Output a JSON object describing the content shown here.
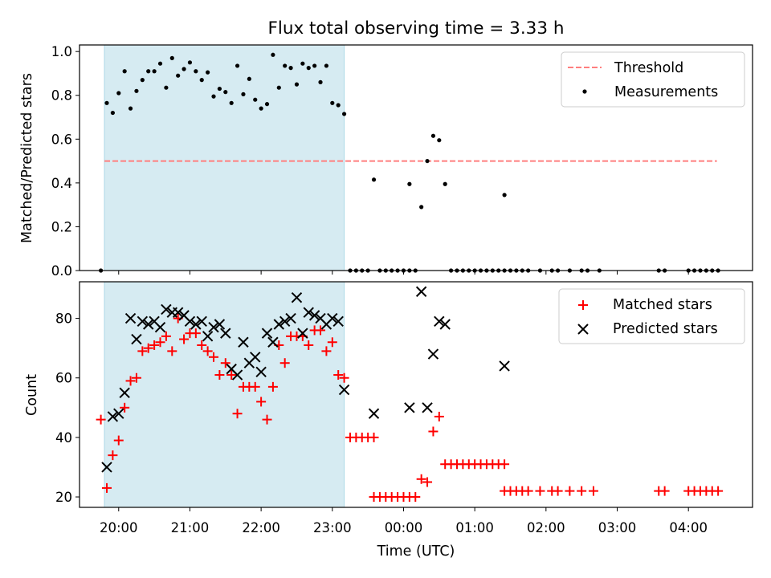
{
  "title": "Flux total observing time = 3.33 h",
  "xlabel": "Time (UTC)",
  "x_tick_labels": [
    "20:00",
    "21:00",
    "22:00",
    "23:00",
    "00:00",
    "01:00",
    "02:00",
    "03:00",
    "04:00"
  ],
  "shaded_interval": {
    "start": "19:48",
    "end": "23:10",
    "color": "#add8e6"
  },
  "chart_data": [
    {
      "type": "scatter",
      "ylabel": "Matched/Predicted stars",
      "xlim": [
        "19:27",
        "04:54"
      ],
      "ylim": [
        0,
        1.03
      ],
      "y_ticks": [
        "0.0",
        "0.2",
        "0.4",
        "0.6",
        "0.8",
        "1.0"
      ],
      "legend_position": "top-right",
      "threshold": {
        "name": "Threshold",
        "value": 0.5,
        "x_range": [
          "19:48",
          "04:24"
        ],
        "color": "#ff7f7f",
        "style": "dashed"
      },
      "series": [
        {
          "name": "Measurements",
          "color": "#000000",
          "marker": "dot",
          "points": [
            [
              "19:45",
              0.0
            ],
            [
              "19:50",
              0.765
            ],
            [
              "19:55",
              0.72
            ],
            [
              "20:00",
              0.81
            ],
            [
              "20:05",
              0.91
            ],
            [
              "20:10",
              0.74
            ],
            [
              "20:15",
              0.82
            ],
            [
              "20:20",
              0.87
            ],
            [
              "20:25",
              0.91
            ],
            [
              "20:30",
              0.91
            ],
            [
              "20:35",
              0.945
            ],
            [
              "20:40",
              0.835
            ],
            [
              "20:45",
              0.97
            ],
            [
              "20:50",
              0.89
            ],
            [
              "20:55",
              0.92
            ],
            [
              "21:00",
              0.95
            ],
            [
              "21:05",
              0.91
            ],
            [
              "21:10",
              0.87
            ],
            [
              "21:15",
              0.905
            ],
            [
              "21:20",
              0.795
            ],
            [
              "21:25",
              0.83
            ],
            [
              "21:30",
              0.815
            ],
            [
              "21:35",
              0.765
            ],
            [
              "21:40",
              0.935
            ],
            [
              "21:45",
              0.805
            ],
            [
              "21:50",
              0.875
            ],
            [
              "21:55",
              0.78
            ],
            [
              "22:00",
              0.74
            ],
            [
              "22:05",
              0.76
            ],
            [
              "22:10",
              0.985
            ],
            [
              "22:15",
              0.835
            ],
            [
              "22:20",
              0.935
            ],
            [
              "22:25",
              0.925
            ],
            [
              "22:30",
              0.85
            ],
            [
              "22:35",
              0.945
            ],
            [
              "22:40",
              0.925
            ],
            [
              "22:45",
              0.935
            ],
            [
              "22:50",
              0.86
            ],
            [
              "22:55",
              0.935
            ],
            [
              "23:00",
              0.765
            ],
            [
              "23:05",
              0.755
            ],
            [
              "23:10",
              0.715
            ],
            [
              "23:15",
              0.0
            ],
            [
              "23:20",
              0.0
            ],
            [
              "23:25",
              0.0
            ],
            [
              "23:30",
              0.0
            ],
            [
              "23:35",
              0.415
            ],
            [
              "23:40",
              0.0
            ],
            [
              "23:45",
              0.0
            ],
            [
              "23:50",
              0.0
            ],
            [
              "23:55",
              0.0
            ],
            [
              "00:00",
              0.0
            ],
            [
              "00:05",
              0.0
            ],
            [
              "00:10",
              0.0
            ],
            [
              "00:05",
              0.395
            ],
            [
              "00:15",
              0.29
            ],
            [
              "00:20",
              0.5
            ],
            [
              "00:25",
              0.615
            ],
            [
              "00:30",
              0.595
            ],
            [
              "00:35",
              0.395
            ],
            [
              "00:40",
              0.0
            ],
            [
              "00:45",
              0.0
            ],
            [
              "00:50",
              0.0
            ],
            [
              "00:55",
              0.0
            ],
            [
              "01:00",
              0.0
            ],
            [
              "01:05",
              0.0
            ],
            [
              "01:10",
              0.0
            ],
            [
              "01:15",
              0.0
            ],
            [
              "01:20",
              0.0
            ],
            [
              "01:25",
              0.0
            ],
            [
              "01:25",
              0.345
            ],
            [
              "01:30",
              0.0
            ],
            [
              "01:35",
              0.0
            ],
            [
              "01:40",
              0.0
            ],
            [
              "01:45",
              0.0
            ],
            [
              "01:55",
              0.0
            ],
            [
              "02:05",
              0.0
            ],
            [
              "02:10",
              0.0
            ],
            [
              "02:20",
              0.0
            ],
            [
              "02:30",
              0.0
            ],
            [
              "02:35",
              0.0
            ],
            [
              "02:45",
              0.0
            ],
            [
              "03:35",
              0.0
            ],
            [
              "03:40",
              0.0
            ],
            [
              "04:00",
              0.0
            ],
            [
              "04:05",
              0.0
            ],
            [
              "04:10",
              0.0
            ],
            [
              "04:15",
              0.0
            ],
            [
              "04:20",
              0.0
            ],
            [
              "04:25",
              0.0
            ]
          ]
        }
      ]
    },
    {
      "type": "scatter",
      "ylabel": "Count",
      "xlim": [
        "19:27",
        "04:54"
      ],
      "ylim": [
        16.5,
        92.3
      ],
      "y_ticks": [
        "20",
        "40",
        "60",
        "80"
      ],
      "legend_position": "top-right",
      "series": [
        {
          "name": "Matched stars",
          "color": "#ff0000",
          "marker": "plus",
          "points": [
            [
              "19:45",
              46
            ],
            [
              "19:50",
              23
            ],
            [
              "19:55",
              34
            ],
            [
              "20:00",
              39
            ],
            [
              "20:05",
              50
            ],
            [
              "20:10",
              59
            ],
            [
              "20:15",
              60
            ],
            [
              "20:20",
              69
            ],
            [
              "20:25",
              70
            ],
            [
              "20:30",
              71
            ],
            [
              "20:35",
              72
            ],
            [
              "20:40",
              74
            ],
            [
              "20:45",
              69
            ],
            [
              "20:50",
              80
            ],
            [
              "20:55",
              73
            ],
            [
              "21:00",
              75
            ],
            [
              "21:05",
              75
            ],
            [
              "21:10",
              71
            ],
            [
              "21:15",
              69
            ],
            [
              "21:20",
              67
            ],
            [
              "21:25",
              61
            ],
            [
              "21:30",
              65
            ],
            [
              "21:35",
              61
            ],
            [
              "21:40",
              48
            ],
            [
              "21:45",
              57
            ],
            [
              "21:50",
              57
            ],
            [
              "21:55",
              57
            ],
            [
              "22:00",
              52
            ],
            [
              "22:05",
              46
            ],
            [
              "22:10",
              57
            ],
            [
              "22:15",
              71
            ],
            [
              "22:20",
              65
            ],
            [
              "22:25",
              74
            ],
            [
              "22:30",
              74
            ],
            [
              "22:35",
              74
            ],
            [
              "22:40",
              71
            ],
            [
              "22:45",
              76
            ],
            [
              "22:50",
              76
            ],
            [
              "22:55",
              69
            ],
            [
              "23:00",
              72
            ],
            [
              "23:05",
              61
            ],
            [
              "23:10",
              60
            ],
            [
              "23:15",
              40
            ],
            [
              "23:20",
              40
            ],
            [
              "23:25",
              40
            ],
            [
              "23:30",
              40
            ],
            [
              "23:35",
              40
            ],
            [
              "23:35",
              20
            ],
            [
              "23:40",
              20
            ],
            [
              "23:45",
              20
            ],
            [
              "23:50",
              20
            ],
            [
              "23:55",
              20
            ],
            [
              "00:00",
              20
            ],
            [
              "00:05",
              20
            ],
            [
              "00:10",
              20
            ],
            [
              "00:15",
              26
            ],
            [
              "00:20",
              25
            ],
            [
              "00:25",
              42
            ],
            [
              "00:30",
              47
            ],
            [
              "00:35",
              31
            ],
            [
              "00:40",
              31
            ],
            [
              "00:45",
              31
            ],
            [
              "00:50",
              31
            ],
            [
              "00:55",
              31
            ],
            [
              "01:00",
              31
            ],
            [
              "01:05",
              31
            ],
            [
              "01:10",
              31
            ],
            [
              "01:15",
              31
            ],
            [
              "01:20",
              31
            ],
            [
              "01:25",
              31
            ],
            [
              "01:25",
              22
            ],
            [
              "01:30",
              22
            ],
            [
              "01:35",
              22
            ],
            [
              "01:40",
              22
            ],
            [
              "01:45",
              22
            ],
            [
              "01:55",
              22
            ],
            [
              "02:05",
              22
            ],
            [
              "02:10",
              22
            ],
            [
              "02:20",
              22
            ],
            [
              "02:30",
              22
            ],
            [
              "02:40",
              22
            ],
            [
              "03:35",
              22
            ],
            [
              "03:40",
              22
            ],
            [
              "04:00",
              22
            ],
            [
              "04:05",
              22
            ],
            [
              "04:10",
              22
            ],
            [
              "04:15",
              22
            ],
            [
              "04:20",
              22
            ],
            [
              "04:25",
              22
            ]
          ]
        },
        {
          "name": "Predicted stars",
          "color": "#000000",
          "marker": "x",
          "points": [
            [
              "19:50",
              30
            ],
            [
              "19:55",
              47
            ],
            [
              "20:00",
              48
            ],
            [
              "20:05",
              55
            ],
            [
              "20:10",
              80
            ],
            [
              "20:15",
              73
            ],
            [
              "20:20",
              79
            ],
            [
              "20:25",
              78
            ],
            [
              "20:30",
              79
            ],
            [
              "20:35",
              77
            ],
            [
              "20:40",
              83
            ],
            [
              "20:45",
              82
            ],
            [
              "20:50",
              82
            ],
            [
              "20:55",
              81
            ],
            [
              "21:00",
              79
            ],
            [
              "21:05",
              78
            ],
            [
              "21:10",
              79
            ],
            [
              "21:15",
              74
            ],
            [
              "21:20",
              77
            ],
            [
              "21:25",
              78
            ],
            [
              "21:30",
              75
            ],
            [
              "21:35",
              63
            ],
            [
              "21:40",
              61
            ],
            [
              "21:45",
              72
            ],
            [
              "21:50",
              65
            ],
            [
              "21:55",
              67
            ],
            [
              "22:00",
              62
            ],
            [
              "22:05",
              75
            ],
            [
              "22:10",
              72
            ],
            [
              "22:15",
              78
            ],
            [
              "22:20",
              79
            ],
            [
              "22:25",
              80
            ],
            [
              "22:30",
              87
            ],
            [
              "22:35",
              75
            ],
            [
              "22:40",
              82
            ],
            [
              "22:45",
              81
            ],
            [
              "22:50",
              80
            ],
            [
              "22:55",
              78
            ],
            [
              "23:00",
              80
            ],
            [
              "23:05",
              79
            ],
            [
              "23:10",
              56
            ],
            [
              "23:35",
              48
            ],
            [
              "00:05",
              50
            ],
            [
              "00:15",
              89
            ],
            [
              "00:20",
              50
            ],
            [
              "00:25",
              68
            ],
            [
              "00:30",
              79
            ],
            [
              "00:35",
              78
            ],
            [
              "01:25",
              64
            ]
          ]
        }
      ]
    }
  ]
}
